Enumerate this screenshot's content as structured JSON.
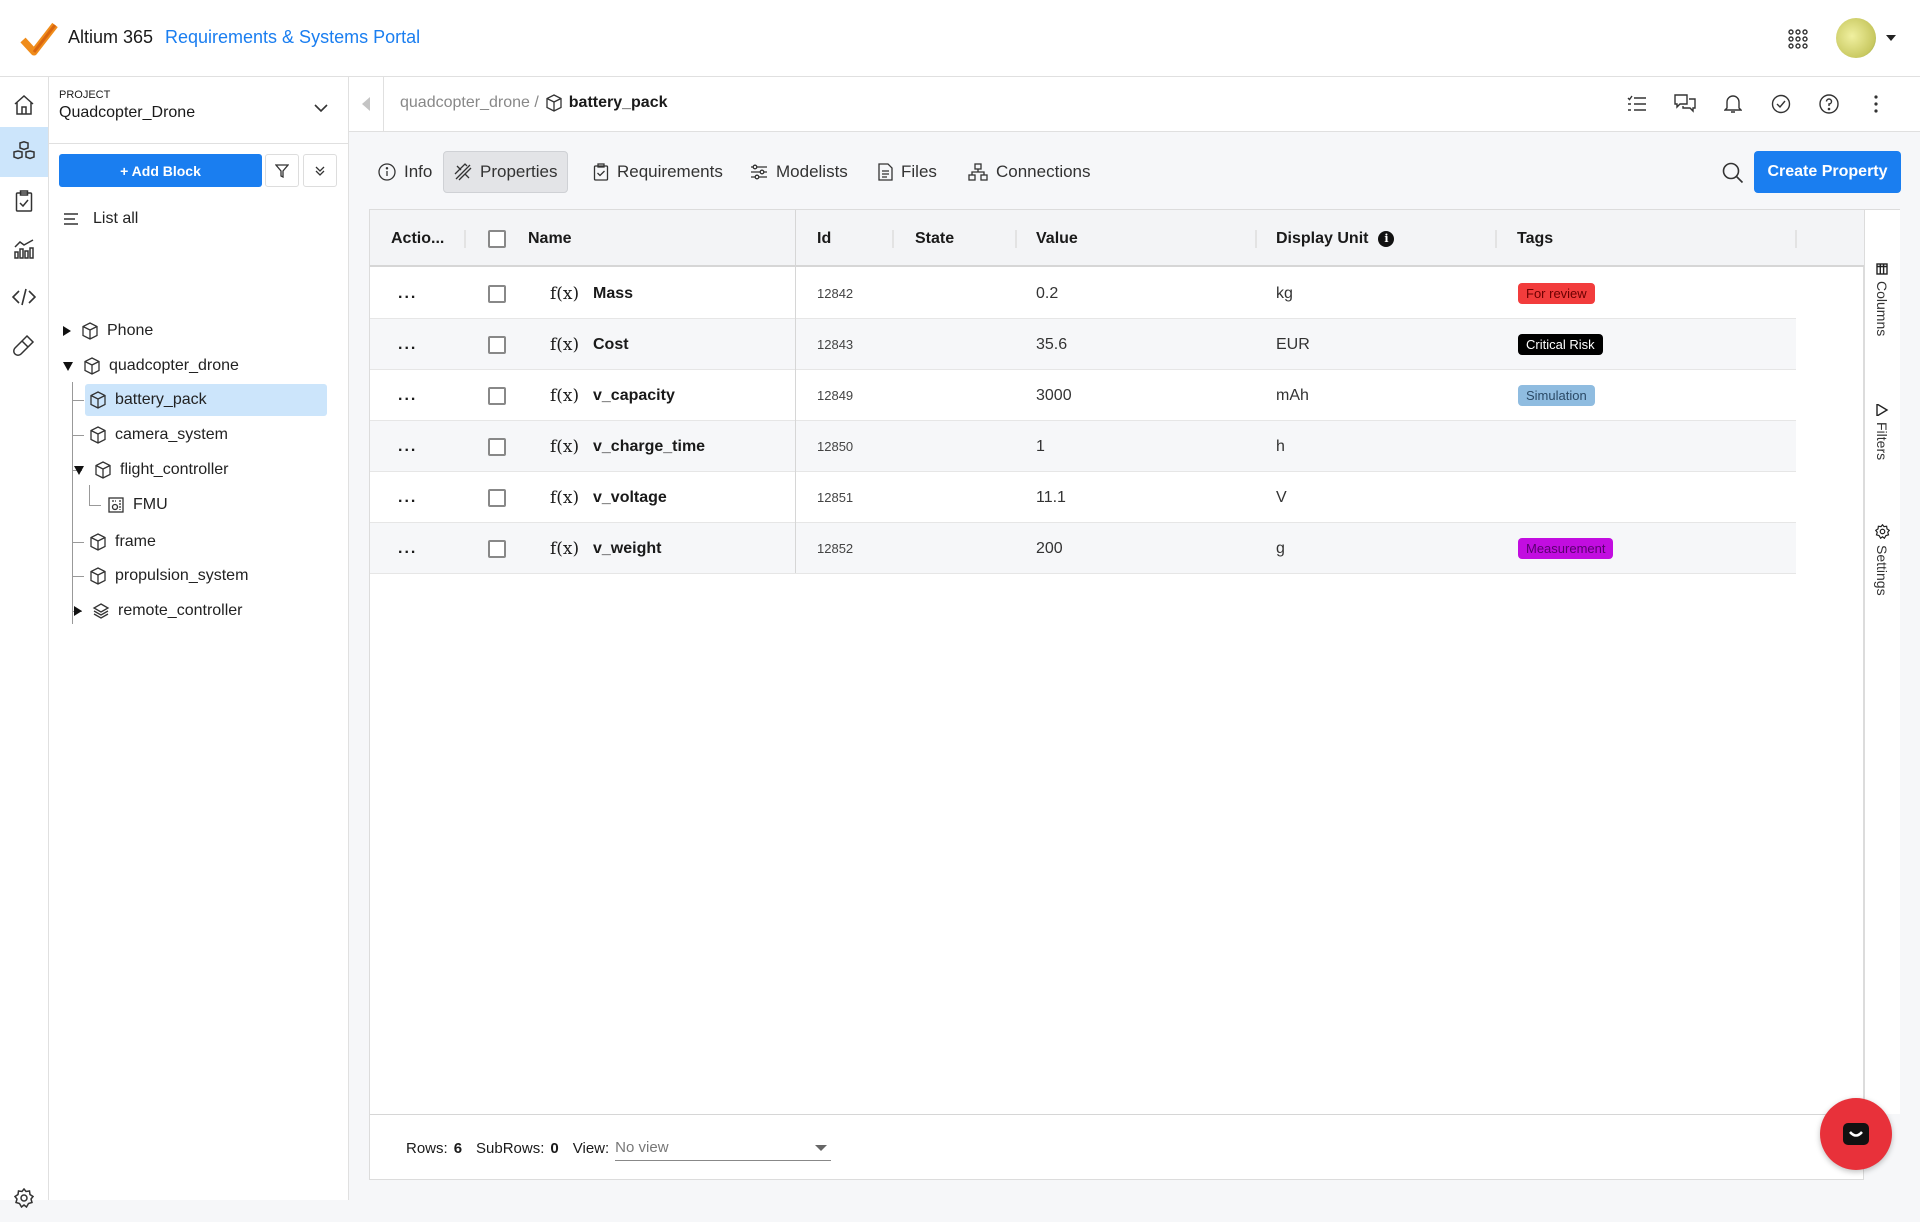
{
  "app": {
    "brand": "Altium 365",
    "portal": "Requirements & Systems Portal"
  },
  "project": {
    "label": "PROJECT",
    "name": "Quadcopter_Drone"
  },
  "tree": {
    "add_block": "+ Add Block",
    "list_all": "List all",
    "items": [
      {
        "label": "Phone",
        "icon": "cube-icon",
        "expander": "collapsed"
      },
      {
        "label": "quadcopter_drone",
        "icon": "cube-icon",
        "expander": "expanded"
      },
      {
        "label": "battery_pack",
        "icon": "cube-icon",
        "selected": true
      },
      {
        "label": "camera_system",
        "icon": "cube-icon"
      },
      {
        "label": "flight_controller",
        "icon": "cube-icon",
        "expander": "expanded"
      },
      {
        "label": "FMU",
        "icon": "component-icon"
      },
      {
        "label": "frame",
        "icon": "cube-icon"
      },
      {
        "label": "propulsion_system",
        "icon": "cube-icon"
      },
      {
        "label": "remote_controller",
        "icon": "layers-icon",
        "expander": "collapsed"
      }
    ]
  },
  "breadcrumb": {
    "parent": "quadcopter_drone /",
    "current": "battery_pack"
  },
  "tabs": [
    {
      "label": "Info",
      "icon": "info-icon"
    },
    {
      "label": "Properties",
      "icon": "properties-icon",
      "active": true
    },
    {
      "label": "Requirements",
      "icon": "clipboard-check-icon"
    },
    {
      "label": "Modelists",
      "icon": "sliders-icon"
    },
    {
      "label": "Files",
      "icon": "file-icon"
    },
    {
      "label": "Connections",
      "icon": "network-icon"
    }
  ],
  "create_property": "Create Property",
  "table": {
    "headers": {
      "actions": "Actio...",
      "name": "Name",
      "id": "Id",
      "state": "State",
      "value": "Value",
      "unit": "Display Unit",
      "tags": "Tags"
    },
    "rows": [
      {
        "name": "Mass",
        "id": "12842",
        "state": "",
        "value": "0.2",
        "unit": "kg",
        "tag": "For review",
        "tag_bg": "#f23c3c",
        "tag_fg": "#6b0000"
      },
      {
        "name": "Cost",
        "id": "12843",
        "state": "",
        "value": "35.6",
        "unit": "EUR",
        "tag": "Critical Risk",
        "tag_bg": "#000000",
        "tag_fg": "#ffffff"
      },
      {
        "name": "v_capacity",
        "id": "12849",
        "state": "",
        "value": "3000",
        "unit": "mAh",
        "tag": "Simulation",
        "tag_bg": "#8fbce0",
        "tag_fg": "#2b4a66"
      },
      {
        "name": "v_charge_time",
        "id": "12850",
        "state": "",
        "value": "1",
        "unit": "h",
        "tag": ""
      },
      {
        "name": "v_voltage",
        "id": "12851",
        "state": "",
        "value": "11.1",
        "unit": "V",
        "tag": ""
      },
      {
        "name": "v_weight",
        "id": "12852",
        "state": "",
        "value": "200",
        "unit": "g",
        "tag": "Measurement",
        "tag_bg": "#c20de0",
        "tag_fg": "#5a0070"
      }
    ],
    "fx": "f(x)",
    "row_menu": "..."
  },
  "side_panel": {
    "columns": "Columns",
    "filters": "Filters",
    "settings": "Settings"
  },
  "footer": {
    "rows_label": "Rows:",
    "rows": "6",
    "subrows_label": "SubRows:",
    "subrows": "0",
    "view_label": "View:",
    "view_value": "No view"
  },
  "colors": {
    "accent": "#1a7ef0",
    "selected": "#cce5fb",
    "chat": "#e8313a",
    "logo": "#f08c1a"
  }
}
